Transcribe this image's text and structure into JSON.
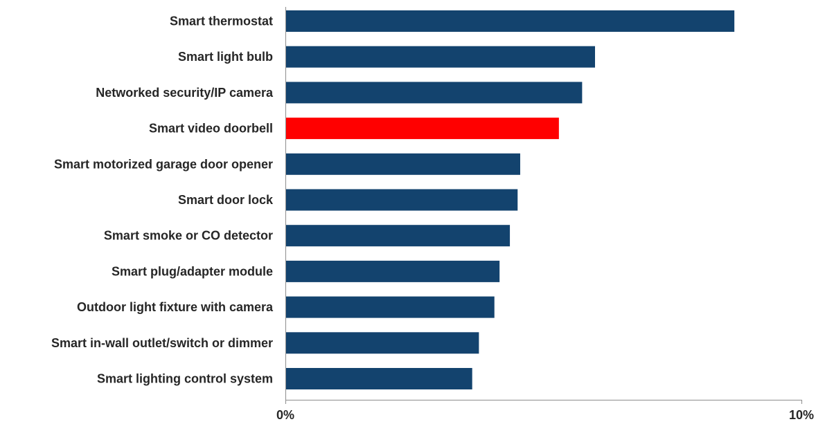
{
  "chart_data": {
    "type": "bar",
    "orientation": "horizontal",
    "categories": [
      "Smart thermostat",
      "Smart light bulb",
      "Networked security/IP camera",
      "Smart video doorbell",
      "Smart motorized garage door opener",
      "Smart door lock",
      "Smart smoke or CO detector",
      "Smart plug/adapter module",
      "Outdoor light fixture with camera",
      "Smart in-wall outlet/switch or dimmer",
      "Smart lighting control system"
    ],
    "values": [
      8.7,
      6.0,
      5.75,
      5.3,
      4.55,
      4.5,
      4.35,
      4.15,
      4.05,
      3.75,
      3.62
    ],
    "highlight_index": 3,
    "xlim": [
      0,
      10
    ],
    "xticks": [
      "0%",
      "10%"
    ],
    "title": "",
    "xlabel": "",
    "ylabel": "",
    "grid": false,
    "colors": {
      "bar": "#13436E",
      "highlight": "#FF0000",
      "axis": "#8C8C8C",
      "text": "#262626"
    }
  }
}
